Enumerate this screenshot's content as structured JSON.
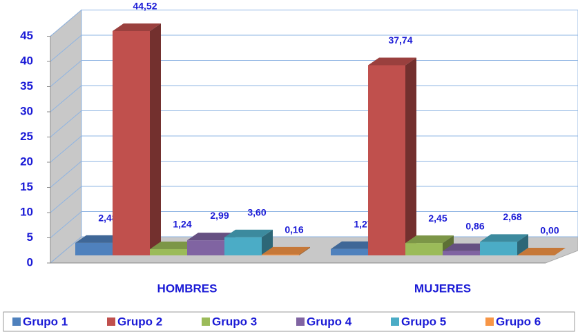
{
  "chart_data": {
    "type": "bar3d",
    "categories": [
      "HOMBRES",
      "MUJERES"
    ],
    "series": [
      {
        "name": "Grupo 1",
        "color": "#4f81bd",
        "values": [
          2.48,
          1.27
        ],
        "value_labels": [
          "2,48",
          "1,27"
        ]
      },
      {
        "name": "Grupo 2",
        "color": "#c0504d",
        "values": [
          44.52,
          37.74
        ],
        "value_labels": [
          "44,52",
          "37,74"
        ]
      },
      {
        "name": "Grupo 3",
        "color": "#9bbb59",
        "values": [
          1.24,
          2.45
        ],
        "value_labels": [
          "1,24",
          "2,45"
        ]
      },
      {
        "name": "Grupo 4",
        "color": "#8064a2",
        "values": [
          2.99,
          0.86
        ],
        "value_labels": [
          "2,99",
          "0,86"
        ]
      },
      {
        "name": "Grupo 5",
        "color": "#4bacc6",
        "values": [
          3.6,
          2.68
        ],
        "value_labels": [
          "3,60",
          "2,68"
        ]
      },
      {
        "name": "Grupo 6",
        "color": "#f79646",
        "values": [
          0.16,
          0.0
        ],
        "value_labels": [
          "0,16",
          "0,00"
        ]
      }
    ],
    "ylim": [
      0,
      45
    ],
    "yticks": [
      0,
      5,
      10,
      15,
      20,
      25,
      30,
      35,
      40,
      45
    ],
    "grid": true,
    "legend": "bottom"
  }
}
